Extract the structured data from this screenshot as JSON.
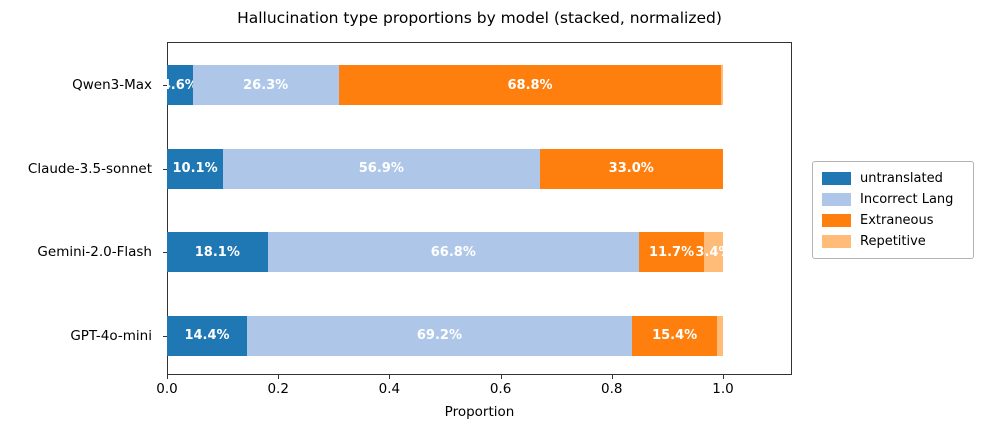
{
  "chart_data": {
    "type": "bar",
    "orientation": "horizontal",
    "stacked": true,
    "normalized": true,
    "title": "Hallucination type proportions by model (stacked, normalized)",
    "xlabel": "Proportion",
    "xlim": [
      0.0,
      1.124
    ],
    "x_ticks": [
      {
        "value": 0.0,
        "label": "0.0"
      },
      {
        "value": 0.2,
        "label": "0.2"
      },
      {
        "value": 0.4,
        "label": "0.4"
      },
      {
        "value": 0.6,
        "label": "0.6"
      },
      {
        "value": 0.8,
        "label": "0.8"
      },
      {
        "value": 1.0,
        "label": "1.0"
      }
    ],
    "grid": false,
    "legend_position": "outside center right",
    "value_unit": "percent of total per model",
    "bar_label_color": "#ffffff",
    "categories": [
      "Qwen3-Max",
      "Claude-3.5-sonnet",
      "Gemini-2.0-Flash",
      "GPT-4o-mini"
    ],
    "series": [
      {
        "name": "untranslated",
        "color": "#1f77b4",
        "values": [
          4.6,
          10.1,
          18.1,
          14.4
        ],
        "labels": [
          "4.6%",
          "10.1%",
          "18.1%",
          "14.4%"
        ]
      },
      {
        "name": "Incorrect Lang",
        "color": "#aec7e8",
        "values": [
          26.3,
          56.9,
          66.8,
          69.2
        ],
        "labels": [
          "26.3%",
          "56.9%",
          "66.8%",
          "69.2%"
        ]
      },
      {
        "name": "Extraneous",
        "color": "#ff7f0e",
        "values": [
          68.8,
          33.0,
          11.7,
          15.4
        ],
        "labels": [
          "68.8%",
          "33.0%",
          "11.7%",
          "15.4%"
        ]
      },
      {
        "name": "Repetitive",
        "color": "#ffbb78",
        "values": [
          0.3,
          0.0,
          3.4,
          1.0
        ],
        "labels": [
          "",
          "",
          "3.4%",
          ""
        ]
      }
    ]
  }
}
